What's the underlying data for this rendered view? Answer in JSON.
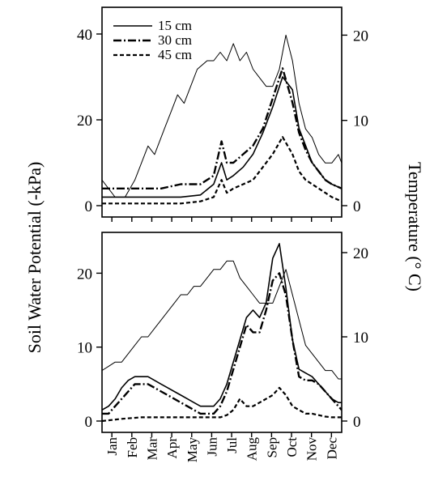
{
  "chart_data": {
    "type": "line",
    "ylabel_left": "Soil Water Potential (-kPa)",
    "ylabel_right": "Temperature (° C)",
    "months": [
      "Jan",
      "Feb",
      "Mar",
      "Apr",
      "May",
      "Jun",
      "Jul",
      "Aug",
      "Sep",
      "Oct",
      "Nov",
      "Dec"
    ],
    "xlim": [
      0,
      365
    ],
    "legend": {
      "placement": "top-left",
      "entries": [
        "15 cm",
        "30 cm",
        "45 cm"
      ]
    },
    "panels": [
      {
        "left_ylim": [
          0,
          48
        ],
        "left_ticks": [
          0,
          20,
          40
        ],
        "right_ylim": [
          0,
          23
        ],
        "right_ticks": [
          0,
          10,
          20
        ],
        "series": [
          {
            "name": "15 cm",
            "style": "solid",
            "axis": "left",
            "x": [
              0,
              30,
              60,
              90,
              120,
              150,
              170,
              182,
              190,
              200,
              215,
              230,
              245,
              260,
              275,
              290,
              300,
              310,
              320,
              330,
              340,
              350,
              365
            ],
            "y": [
              2,
              2,
              2,
              2,
              2,
              2.5,
              5,
              10,
              6,
              7,
              9,
              12,
              17,
              23,
              30,
              27,
              18,
              14,
              10,
              8,
              6,
              5,
              4
            ]
          },
          {
            "name": "30 cm",
            "style": "dashdot",
            "axis": "left",
            "x": [
              0,
              30,
              60,
              90,
              120,
              150,
              170,
              182,
              190,
              200,
              215,
              230,
              245,
              260,
              275,
              290,
              300,
              310,
              320,
              330,
              340,
              350,
              365
            ],
            "y": [
              4,
              4,
              4,
              4,
              5,
              5,
              7,
              15,
              10,
              10,
              12,
              14,
              18,
              25,
              32,
              24,
              17,
              13,
              10,
              8,
              6,
              5,
              4
            ]
          },
          {
            "name": "45 cm",
            "style": "dashed",
            "axis": "left",
            "x": [
              0,
              30,
              60,
              90,
              120,
              150,
              170,
              182,
              190,
              200,
              215,
              230,
              245,
              260,
              275,
              290,
              300,
              310,
              320,
              330,
              340,
              350,
              365
            ],
            "y": [
              0.5,
              0.5,
              0.5,
              0.5,
              0.5,
              1,
              2,
              6,
              3,
              4,
              5,
              6,
              9,
              12,
              16,
              12,
              8,
              6,
              5,
              4,
              3,
              2,
              1
            ]
          },
          {
            "name": "Temperature",
            "style": "thin",
            "axis": "right",
            "x": [
              0,
              10,
              20,
              35,
              50,
              60,
              70,
              80,
              95,
              105,
              115,
              125,
              135,
              145,
              160,
              170,
              180,
              190,
              200,
              210,
              220,
              230,
              240,
              250,
              260,
              270,
              280,
              290,
              300,
              310,
              320,
              330,
              340,
              350,
              360,
              365
            ],
            "y": [
              3,
              2,
              1,
              1,
              3,
              5,
              7,
              6,
              9,
              11,
              13,
              12,
              14,
              16,
              17,
              17,
              18,
              17,
              19,
              17,
              18,
              16,
              15,
              14,
              14,
              16,
              20,
              17,
              12,
              9,
              8,
              6,
              5,
              5,
              6,
              5
            ]
          }
        ]
      },
      {
        "left_ylim": [
          0,
          25
        ],
        "left_ticks": [
          0,
          10,
          20
        ],
        "right_ylim": [
          0,
          22.5
        ],
        "right_ticks": [
          0,
          10,
          20
        ],
        "series": [
          {
            "name": "15 cm",
            "style": "solid",
            "axis": "left",
            "x": [
              0,
              10,
              20,
              30,
              40,
              50,
              60,
              70,
              80,
              90,
              100,
              110,
              120,
              130,
              140,
              150,
              160,
              170,
              180,
              190,
              200,
              210,
              220,
              230,
              240,
              250,
              260,
              270,
              280,
              290,
              300,
              310,
              320,
              330,
              340,
              350,
              360,
              365
            ],
            "y": [
              1.5,
              2,
              3,
              4.5,
              5.5,
              6,
              6,
              6,
              5.5,
              5,
              4.5,
              4,
              3.5,
              3,
              2.5,
              2,
              2,
              2,
              3,
              5,
              8,
              11,
              14,
              15,
              14,
              16,
              22,
              24,
              18,
              11,
              7,
              6.5,
              6,
              5,
              4,
              3,
              2.5,
              2.5
            ]
          },
          {
            "name": "30 cm",
            "style": "dashdot",
            "axis": "left",
            "x": [
              0,
              10,
              20,
              30,
              40,
              50,
              60,
              70,
              80,
              90,
              100,
              110,
              120,
              130,
              140,
              150,
              160,
              170,
              180,
              190,
              200,
              210,
              220,
              230,
              240,
              250,
              260,
              270,
              280,
              290,
              300,
              310,
              320,
              330,
              340,
              350,
              360,
              365
            ],
            "y": [
              1,
              1,
              2,
              3,
              4,
              5,
              5,
              5,
              4.5,
              4,
              3.5,
              3,
              2.5,
              2,
              1.5,
              1,
              1,
              1,
              2,
              4,
              7,
              10,
              13,
              12,
              12,
              15,
              19,
              20,
              17,
              11,
              6,
              5.5,
              5.5,
              5,
              4,
              3,
              2,
              1.5
            ]
          },
          {
            "name": "45 cm",
            "style": "dashed",
            "axis": "left",
            "x": [
              0,
              30,
              60,
              90,
              120,
              150,
              170,
              180,
              190,
              200,
              210,
              220,
              230,
              240,
              250,
              260,
              270,
              280,
              290,
              300,
              310,
              320,
              330,
              340,
              350,
              360,
              365
            ],
            "y": [
              0,
              0.3,
              0.5,
              0.5,
              0.5,
              0.5,
              0.5,
              0.5,
              0.8,
              1.5,
              3,
              2,
              2,
              2.5,
              3,
              3.5,
              4.5,
              3.5,
              2,
              1.5,
              1,
              1,
              0.8,
              0.6,
              0.5,
              0.5,
              0.5
            ]
          },
          {
            "name": "Temperature",
            "style": "thin",
            "axis": "right",
            "x": [
              0,
              10,
              20,
              30,
              40,
              50,
              60,
              70,
              80,
              90,
              100,
              110,
              120,
              130,
              140,
              150,
              160,
              170,
              180,
              190,
              200,
              210,
              220,
              230,
              240,
              250,
              260,
              270,
              280,
              290,
              300,
              310,
              320,
              330,
              340,
              350,
              360,
              365
            ],
            "y": [
              6,
              6.5,
              7,
              7,
              8,
              9,
              10,
              10,
              11,
              12,
              13,
              14,
              15,
              15,
              16,
              16,
              17,
              18,
              18,
              19,
              19,
              17,
              16,
              15,
              14,
              14,
              14,
              16,
              18,
              15,
              12,
              9,
              8,
              7,
              6,
              6,
              5,
              5
            ]
          }
        ]
      }
    ]
  }
}
